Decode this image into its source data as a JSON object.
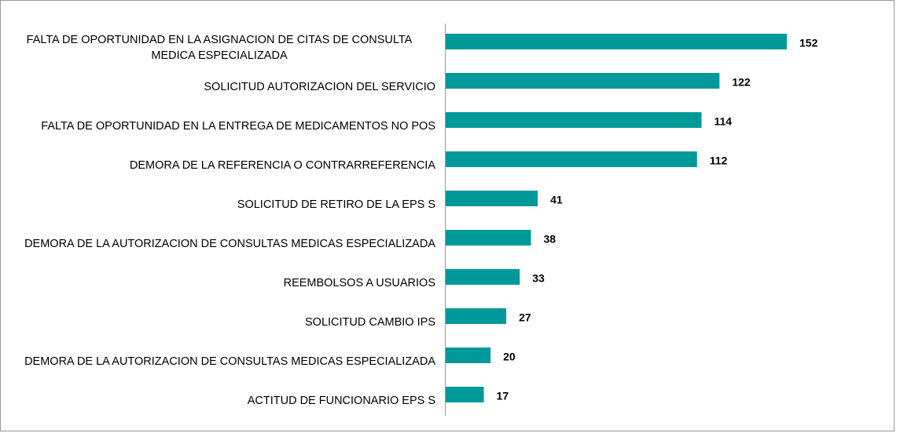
{
  "chart_data": {
    "type": "bar",
    "orientation": "horizontal",
    "color": "#009999",
    "categories": [
      "FALTA DE OPORTUNIDAD EN LA ASIGNACION DE CITAS DE CONSULTA MEDICA ESPECIALIZADA",
      "SOLICITUD AUTORIZACION DEL SERVICIO",
      "FALTA DE OPORTUNIDAD EN LA ENTREGA DE MEDICAMENTOS NO POS",
      "DEMORA DE LA REFERENCIA O CONTRARREFERENCIA",
      "SOLICITUD DE RETIRO DE LA EPS S",
      "DEMORA DE LA AUTORIZACION DE CONSULTAS MEDICAS ESPECIALIZADA",
      "REEMBOLSOS A USUARIOS",
      "SOLICITUD CAMBIO IPS",
      "DEMORA DE LA AUTORIZACION DE CONSULTAS MEDICAS ESPECIALIZADA",
      "ACTITUD DE FUNCIONARIO EPS S"
    ],
    "values": [
      152,
      122,
      114,
      112,
      41,
      38,
      33,
      27,
      20,
      17
    ]
  }
}
